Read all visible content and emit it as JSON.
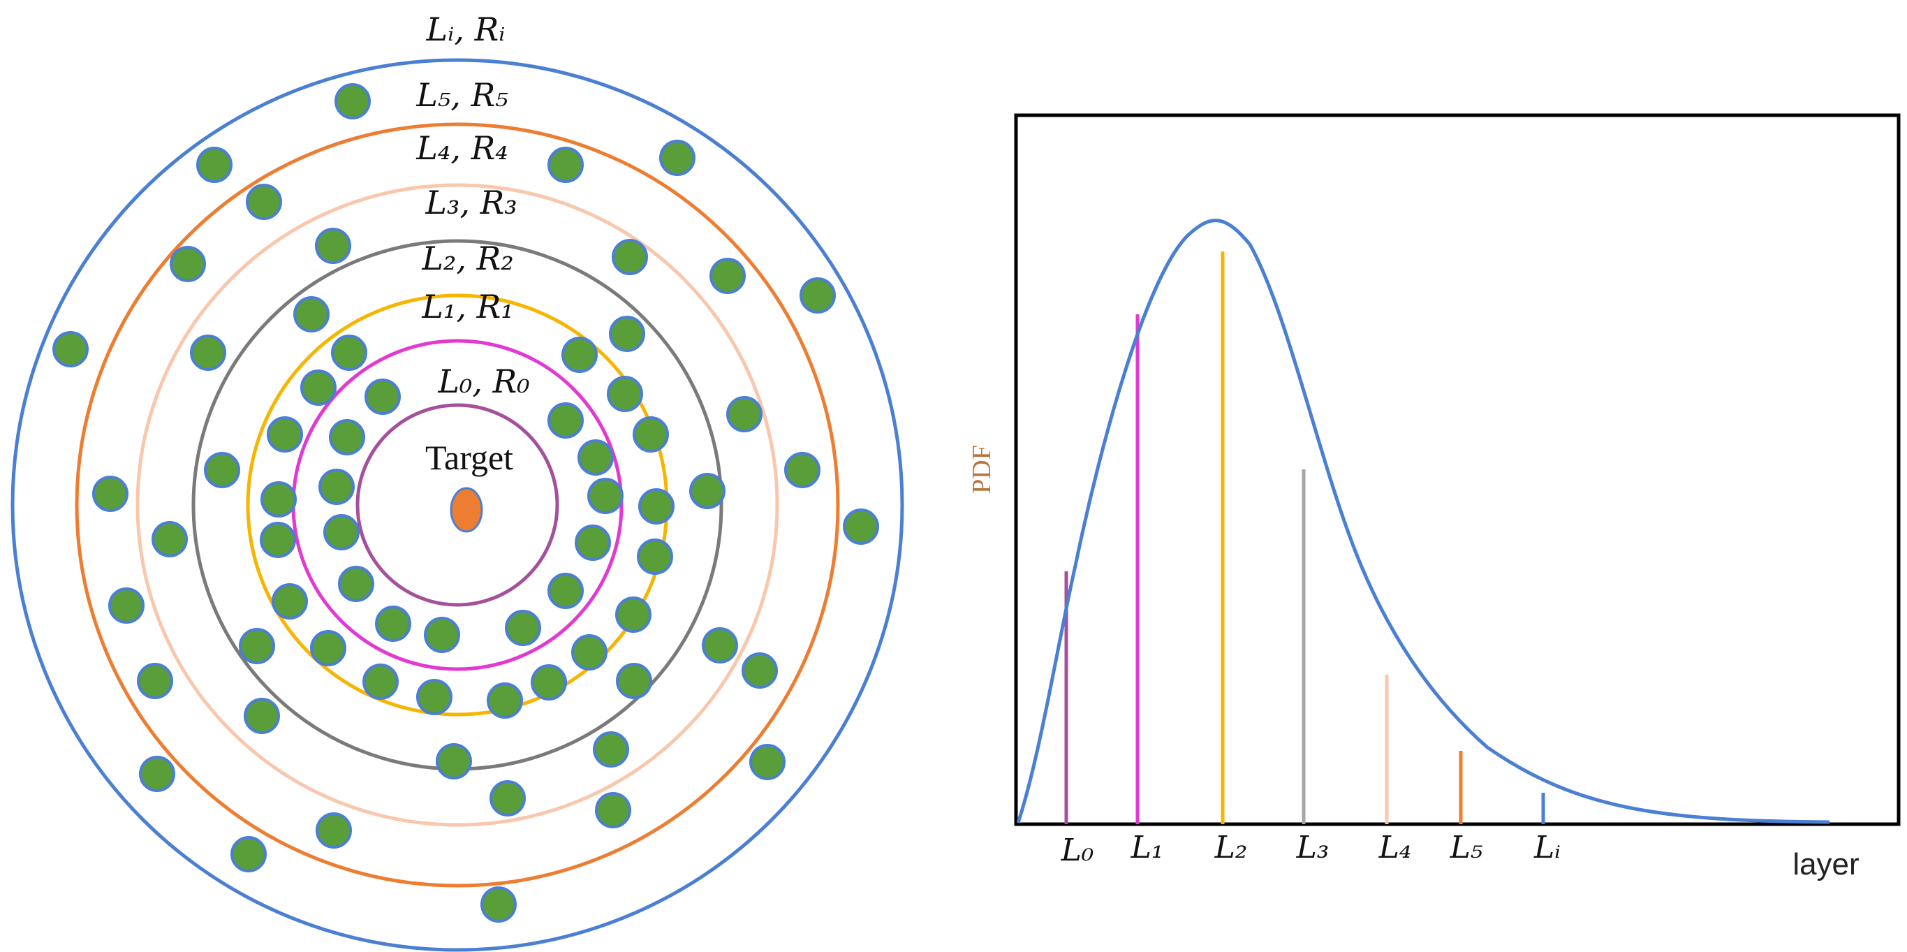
{
  "colors": {
    "node_fill": "#5a9e3a",
    "node_stroke": "#4a7fd4",
    "target_fill": "#ed7d31",
    "curve": "#4a7fd4",
    "ylabel": "#b7753b",
    "ring_L0": "#a4509b",
    "ring_L1": "#e23ad1",
    "ring_L2": "#f7b500",
    "ring_L3": "#7a7a7a",
    "ring_L4": "#f8c7ad",
    "ring_L5": "#ed7d31",
    "ring_Li": "#4a7fd4"
  },
  "diagram": {
    "target_label": "Target",
    "rings": [
      {
        "key": "L0",
        "label": "L₀, R₀"
      },
      {
        "key": "L1",
        "label": "L₁, R₁"
      },
      {
        "key": "L2",
        "label": "L₂, R₂"
      },
      {
        "key": "L3",
        "label": "L₃, R₃"
      },
      {
        "key": "L4",
        "label": "L₄, R₄"
      },
      {
        "key": "L5",
        "label": "L₅, R₅"
      },
      {
        "key": "Li",
        "label": "Lᵢ, Rᵢ"
      }
    ]
  },
  "chart": {
    "ylabel": "PDF",
    "xlabel": "layer",
    "ticks": [
      {
        "key": "L0",
        "label": "L₀"
      },
      {
        "key": "L1",
        "label": "L₁"
      },
      {
        "key": "L2",
        "label": "L₂"
      },
      {
        "key": "L3",
        "label": "L₃"
      },
      {
        "key": "L4",
        "label": "L₄"
      },
      {
        "key": "L5",
        "label": "L₅"
      },
      {
        "key": "Li",
        "label": "Lᵢ"
      }
    ]
  }
}
